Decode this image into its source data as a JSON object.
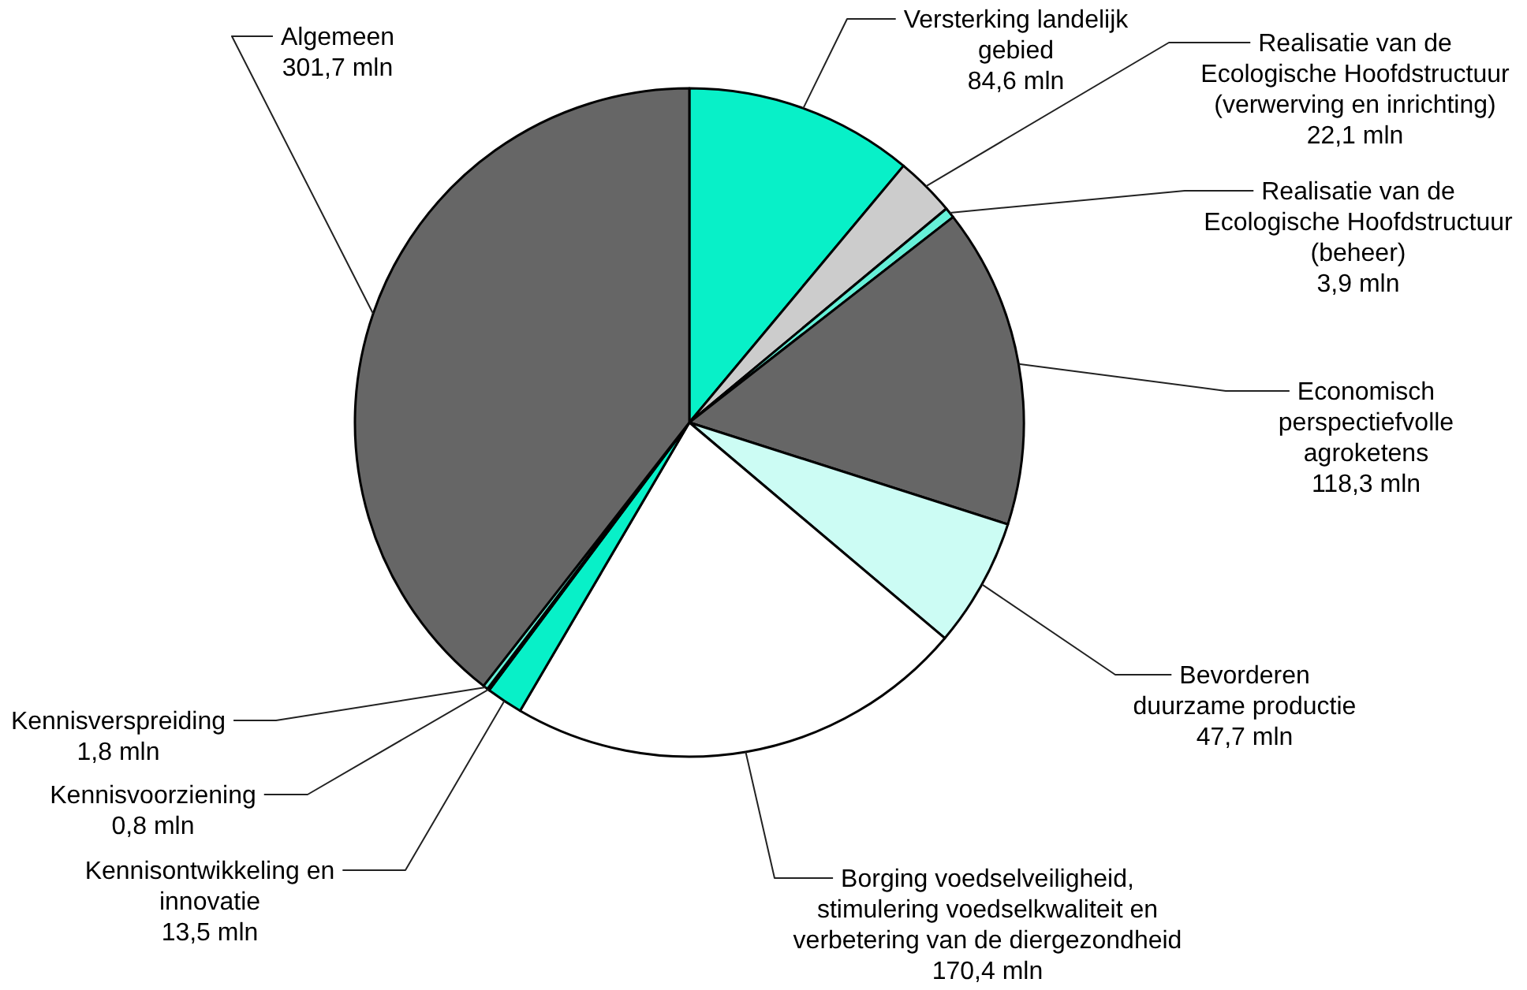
{
  "chart_data": {
    "type": "pie",
    "categories": [
      "Versterking landelijk gebied",
      "Realisatie van de Ecologische Hoofdstructuur (verwerving en inrichting)",
      "Realisatie van de Ecologische Hoofdstructuur (beheer)",
      "Economisch perspectiefvolle agroketens",
      "Bevorderen duurzame productie",
      "Borging voedselveiligheid, stimulering voedselkwaliteit en verbetering van de diergezondheid",
      "Kennisontwikkeling en innovatie",
      "Kennisvoorziening",
      "Kennisverspreiding",
      "Algemeen"
    ],
    "values": [
      84.6,
      22.1,
      3.9,
      118.3,
      47.7,
      170.4,
      13.5,
      0.8,
      1.8,
      301.7
    ],
    "colors": [
      "#08f0c8",
      "#cccccc",
      "#66f0d8",
      "#666666",
      "#ccfcf4",
      "#ffffff",
      "#08f0c8",
      "#08f0c8",
      "#66f0d8",
      "#666666"
    ],
    "value_labels": [
      "84,6 mln",
      "22,1 mln",
      "3,9 mln",
      "118,3 mln",
      "47,7 mln",
      "170,4 mln",
      "13,5 mln",
      "0,8 mln",
      "1,8 mln",
      "301,7 mln"
    ]
  }
}
